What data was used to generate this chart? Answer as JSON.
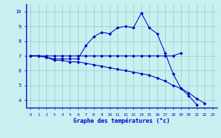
{
  "hours": [
    0,
    1,
    2,
    3,
    4,
    5,
    6,
    7,
    8,
    9,
    10,
    11,
    12,
    13,
    14,
    15,
    16,
    17,
    18,
    19,
    20,
    21,
    22,
    23
  ],
  "temp_max": [
    7.0,
    7.0,
    6.9,
    6.8,
    6.8,
    6.8,
    6.8,
    7.7,
    8.3,
    8.6,
    8.5,
    8.9,
    9.0,
    8.9,
    9.9,
    8.9,
    8.5,
    7.2,
    5.8,
    4.8,
    4.3,
    3.7,
    null,
    null
  ],
  "temp_mid": [
    7.0,
    7.0,
    7.0,
    7.0,
    7.0,
    7.0,
    7.0,
    7.0,
    7.0,
    7.0,
    7.0,
    7.0,
    7.0,
    7.0,
    7.0,
    7.0,
    7.0,
    7.0,
    7.0,
    7.2,
    null,
    null,
    null,
    null
  ],
  "temp_min": [
    7.0,
    7.0,
    6.9,
    6.7,
    6.7,
    6.6,
    6.6,
    6.5,
    6.4,
    6.3,
    6.2,
    6.1,
    6.0,
    5.9,
    5.8,
    5.7,
    5.5,
    5.3,
    5.0,
    4.8,
    4.5,
    4.1,
    3.8,
    null
  ],
  "ylim": [
    3.5,
    10.5
  ],
  "yticks": [
    4,
    5,
    6,
    7,
    8,
    9,
    10
  ],
  "xlabel": "Graphe des températures (°c)",
  "line_color": "#0000cc",
  "bg_color": "#c8f0f0",
  "grid_color": "#90c8c8",
  "axis_color": "#0000cc",
  "tick_label_color": "#0000cc",
  "marker": "D",
  "marker_size": 2.0,
  "linewidth": 0.8
}
